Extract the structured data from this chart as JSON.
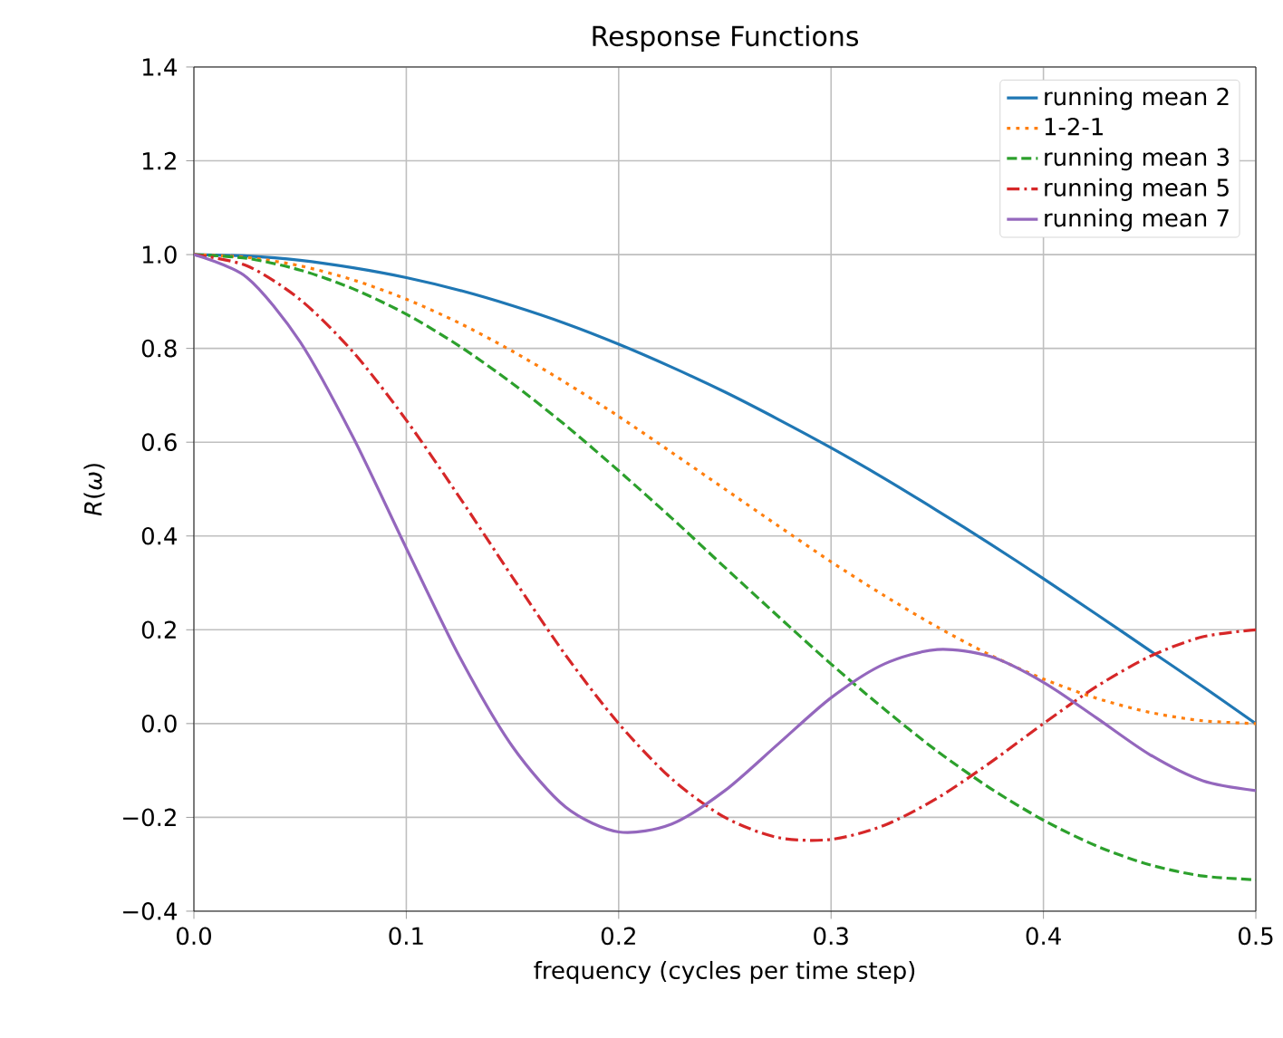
{
  "chart_data": {
    "type": "line",
    "title": "Response Functions",
    "xlabel": "frequency (cycles per time step)",
    "ylabel": "*R*(*ω*)",
    "x": [
      0,
      0.025,
      0.05,
      0.075,
      0.1,
      0.125,
      0.15,
      0.175,
      0.2,
      0.225,
      0.25,
      0.275,
      0.3,
      0.325,
      0.35,
      0.375,
      0.4,
      0.425,
      0.45,
      0.475,
      0.5
    ],
    "series": [
      {
        "name": "running mean 2",
        "color": "#1f77b4",
        "line_style": "solid",
        "values": [
          1,
          0.997,
          0.988,
          0.972,
          0.951,
          0.924,
          0.891,
          0.853,
          0.809,
          0.76,
          0.707,
          0.649,
          0.588,
          0.523,
          0.454,
          0.383,
          0.309,
          0.233,
          0.156,
          0.079,
          0
        ]
      },
      {
        "name": "1-2-1",
        "color": "#ff7f0e",
        "line_style": "dotted",
        "values": [
          1,
          0.994,
          0.976,
          0.946,
          0.905,
          0.854,
          0.794,
          0.727,
          0.655,
          0.578,
          0.5,
          0.422,
          0.345,
          0.273,
          0.206,
          0.146,
          0.095,
          0.054,
          0.024,
          0.006,
          0
        ]
      },
      {
        "name": "running mean 3",
        "color": "#2ca02c",
        "line_style": "dashed",
        "values": [
          1,
          0.992,
          0.967,
          0.927,
          0.873,
          0.805,
          0.725,
          0.636,
          0.539,
          0.438,
          0.333,
          0.229,
          0.127,
          0.031,
          -0.059,
          -0.138,
          -0.206,
          -0.261,
          -0.301,
          -0.325,
          -0.333
        ]
      },
      {
        "name": "running mean 5",
        "color": "#d62728",
        "line_style": "dashdot",
        "values": [
          1,
          0.976,
          0.904,
          0.792,
          0.647,
          0.483,
          0.312,
          0.146,
          0,
          -0.118,
          -0.2,
          -0.243,
          -0.247,
          -0.217,
          -0.159,
          -0.083,
          0,
          0.079,
          0.143,
          0.185,
          0.2
        ]
      },
      {
        "name": "running mean 7",
        "color": "#9467bd",
        "line_style": "solid",
        "values": [
          1,
          0.951,
          0.814,
          0.61,
          0.374,
          0.143,
          -0.049,
          -0.178,
          -0.231,
          -0.214,
          -0.143,
          -0.044,
          0.055,
          0.127,
          0.158,
          0.143,
          0.088,
          0.012,
          -0.066,
          -0.122,
          -0.143
        ]
      }
    ],
    "xlim": [
      0,
      0.5
    ],
    "ylim": [
      -0.4,
      1.4
    ],
    "xticks": [
      {
        "value": 0,
        "label": "0.0"
      },
      {
        "value": 0.1,
        "label": "0.1"
      },
      {
        "value": 0.2,
        "label": "0.2"
      },
      {
        "value": 0.3,
        "label": "0.3"
      },
      {
        "value": 0.4,
        "label": "0.4"
      },
      {
        "value": 0.5,
        "label": "0.5"
      }
    ],
    "yticks": [
      {
        "value": -0.4,
        "label": "−0.4"
      },
      {
        "value": -0.2,
        "label": "−0.2"
      },
      {
        "value": 0,
        "label": "0.0"
      },
      {
        "value": 0.2,
        "label": "0.2"
      },
      {
        "value": 0.4,
        "label": "0.4"
      },
      {
        "value": 0.6,
        "label": "0.6"
      },
      {
        "value": 0.8,
        "label": "0.8"
      },
      {
        "value": 1.0,
        "label": "1.0"
      },
      {
        "value": 1.2,
        "label": "1.2"
      },
      {
        "value": 1.4,
        "label": "1.4"
      }
    ],
    "grid": true,
    "legend": "top right",
    "marker": "none"
  }
}
